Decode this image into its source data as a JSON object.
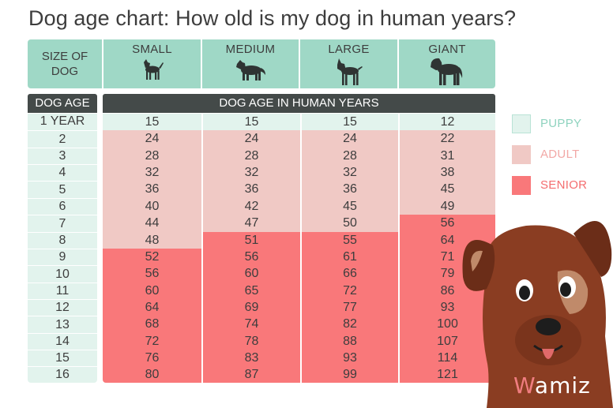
{
  "title": "Dog age chart: How old is my dog in human years?",
  "size_header": {
    "label_line1": "SIZE OF",
    "label_line2": "DOG",
    "sizes": [
      {
        "name": "SMALL",
        "icon": "small-dog-icon"
      },
      {
        "name": "MEDIUM",
        "icon": "medium-dog-icon"
      },
      {
        "name": "LARGE",
        "icon": "large-dog-icon"
      },
      {
        "name": "GIANT",
        "icon": "giant-dog-icon"
      }
    ]
  },
  "age_header": "DOG AGE",
  "human_header": "DOG AGE IN HUMAN YEARS",
  "legend": {
    "puppy": "PUPPY",
    "adult": "ADULT",
    "senior": "SENIOR"
  },
  "colors": {
    "puppy": "#e2f3ed",
    "adult": "#f0c9c5",
    "senior": "#f9787a",
    "header_green": "#9fd8c6",
    "header_dark": "#444a49",
    "puppy_text": "#8fd3bf",
    "adult_text": "#f2a8a6",
    "senior_text": "#f46d6f"
  },
  "brand": {
    "first": "W",
    "rest": "amiz"
  },
  "chart_data": {
    "type": "table",
    "title": "Dog age chart: How old is my dog in human years?",
    "row_header": "DOG AGE",
    "column_group_header": "DOG AGE IN HUMAN YEARS",
    "columns": [
      "SMALL",
      "MEDIUM",
      "LARGE",
      "GIANT"
    ],
    "age_labels": [
      "1 YEAR",
      "2",
      "3",
      "4",
      "5",
      "6",
      "7",
      "8",
      "9",
      "10",
      "11",
      "12",
      "13",
      "14",
      "15",
      "16"
    ],
    "rows": [
      [
        15,
        15,
        15,
        12
      ],
      [
        24,
        24,
        24,
        22
      ],
      [
        28,
        28,
        28,
        31
      ],
      [
        32,
        32,
        32,
        38
      ],
      [
        36,
        36,
        36,
        45
      ],
      [
        40,
        42,
        45,
        49
      ],
      [
        44,
        47,
        50,
        56
      ],
      [
        48,
        51,
        55,
        64
      ],
      [
        52,
        56,
        61,
        71
      ],
      [
        56,
        60,
        66,
        79
      ],
      [
        60,
        65,
        72,
        86
      ],
      [
        64,
        69,
        77,
        93
      ],
      [
        68,
        74,
        82,
        100
      ],
      [
        72,
        78,
        88,
        107
      ],
      [
        76,
        83,
        93,
        114
      ],
      [
        80,
        87,
        99,
        121
      ]
    ],
    "stages": [
      [
        "puppy",
        "puppy",
        "puppy",
        "puppy"
      ],
      [
        "adult",
        "adult",
        "adult",
        "adult"
      ],
      [
        "adult",
        "adult",
        "adult",
        "adult"
      ],
      [
        "adult",
        "adult",
        "adult",
        "adult"
      ],
      [
        "adult",
        "adult",
        "adult",
        "adult"
      ],
      [
        "adult",
        "adult",
        "adult",
        "adult"
      ],
      [
        "adult",
        "adult",
        "adult",
        "senior"
      ],
      [
        "adult",
        "senior",
        "senior",
        "senior"
      ],
      [
        "senior",
        "senior",
        "senior",
        "senior"
      ],
      [
        "senior",
        "senior",
        "senior",
        "senior"
      ],
      [
        "senior",
        "senior",
        "senior",
        "senior"
      ],
      [
        "senior",
        "senior",
        "senior",
        "senior"
      ],
      [
        "senior",
        "senior",
        "senior",
        "senior"
      ],
      [
        "senior",
        "senior",
        "senior",
        "senior"
      ],
      [
        "senior",
        "senior",
        "senior",
        "senior"
      ],
      [
        "senior",
        "senior",
        "senior",
        "senior"
      ]
    ]
  }
}
